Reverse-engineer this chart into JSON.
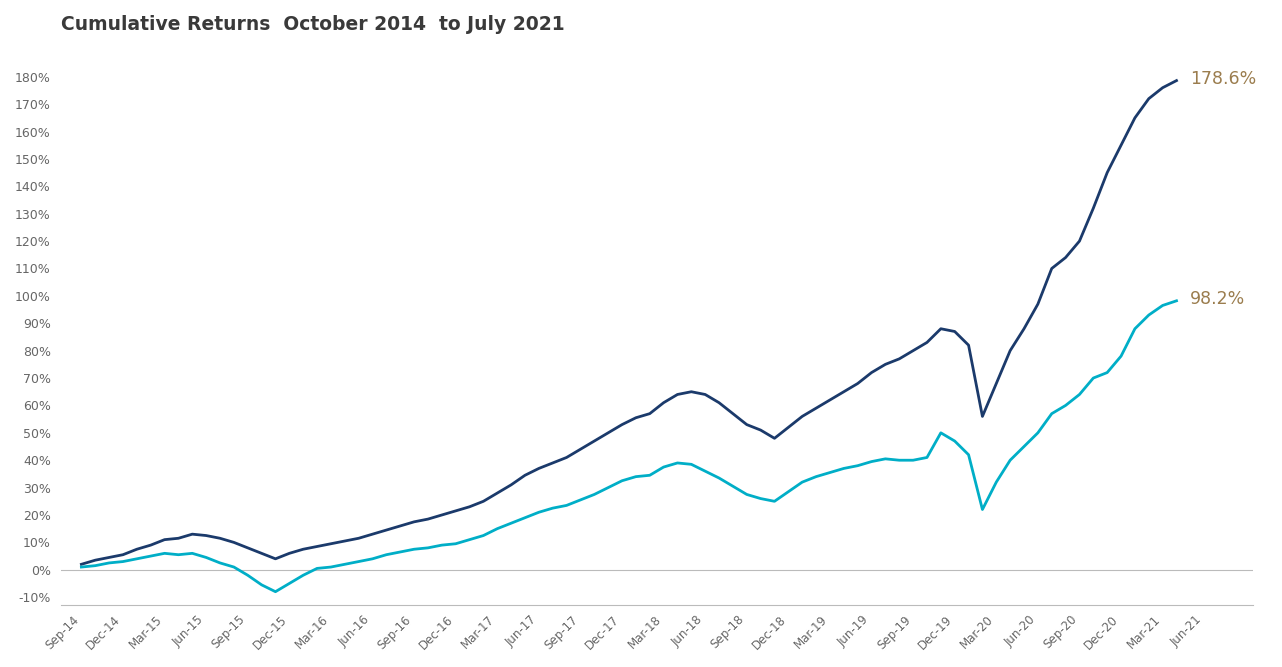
{
  "title": "Cumulative Returns  October 2014  to July 2021",
  "title_color": "#3a3a3a",
  "background_color": "#ffffff",
  "line1_color": "#1b3a6b",
  "line2_color": "#00aec7",
  "label1": "178.6%",
  "label2": "98.2%",
  "label_color": "#9b7d4e",
  "ylim": [
    -0.13,
    1.92
  ],
  "yticks": [
    -0.1,
    0.0,
    0.1,
    0.2,
    0.3,
    0.4,
    0.5,
    0.6,
    0.7,
    0.8,
    0.9,
    1.0,
    1.1,
    1.2,
    1.3,
    1.4,
    1.5,
    1.6,
    1.7,
    1.8
  ],
  "x_tick_labels": [
    "Sep-14",
    "Dec-14",
    "Mar-15",
    "Jun-15",
    "Sep-15",
    "Dec-15",
    "Mar-16",
    "Jun-16",
    "Sep-16",
    "Dec-16",
    "Mar-17",
    "Jun-17",
    "Sep-17",
    "Dec-17",
    "Mar-18",
    "Jun-18",
    "Sep-18",
    "Dec-18",
    "Mar-19",
    "Jun-19",
    "Sep-19",
    "Dec-19",
    "Mar-20",
    "Jun-20",
    "Sep-20",
    "Dec-20",
    "Mar-21",
    "Jun-21"
  ],
  "x_tick_positions": [
    0,
    3,
    6,
    9,
    12,
    15,
    18,
    21,
    24,
    27,
    30,
    33,
    36,
    39,
    42,
    45,
    48,
    51,
    54,
    57,
    60,
    63,
    66,
    69,
    72,
    75,
    78,
    81
  ],
  "line1_values": [
    0.02,
    0.035,
    0.045,
    0.055,
    0.075,
    0.09,
    0.11,
    0.115,
    0.13,
    0.125,
    0.115,
    0.1,
    0.08,
    0.06,
    0.04,
    0.06,
    0.075,
    0.085,
    0.095,
    0.105,
    0.115,
    0.13,
    0.145,
    0.16,
    0.175,
    0.185,
    0.2,
    0.215,
    0.23,
    0.25,
    0.28,
    0.31,
    0.345,
    0.37,
    0.39,
    0.41,
    0.44,
    0.47,
    0.5,
    0.53,
    0.555,
    0.57,
    0.61,
    0.64,
    0.65,
    0.64,
    0.61,
    0.57,
    0.53,
    0.51,
    0.48,
    0.52,
    0.56,
    0.59,
    0.62,
    0.65,
    0.68,
    0.72,
    0.75,
    0.77,
    0.8,
    0.83,
    0.88,
    0.87,
    0.82,
    0.56,
    0.68,
    0.8,
    0.88,
    0.97,
    1.1,
    1.14,
    1.2,
    1.32,
    1.45,
    1.55,
    1.65,
    1.72,
    1.76,
    1.786
  ],
  "line2_values": [
    0.01,
    0.015,
    0.025,
    0.03,
    0.04,
    0.05,
    0.06,
    0.055,
    0.06,
    0.045,
    0.025,
    0.01,
    -0.02,
    -0.055,
    -0.08,
    -0.05,
    -0.02,
    0.005,
    0.01,
    0.02,
    0.03,
    0.04,
    0.055,
    0.065,
    0.075,
    0.08,
    0.09,
    0.095,
    0.11,
    0.125,
    0.15,
    0.17,
    0.19,
    0.21,
    0.225,
    0.235,
    0.255,
    0.275,
    0.3,
    0.325,
    0.34,
    0.345,
    0.375,
    0.39,
    0.385,
    0.36,
    0.335,
    0.305,
    0.275,
    0.26,
    0.25,
    0.285,
    0.32,
    0.34,
    0.355,
    0.37,
    0.38,
    0.395,
    0.405,
    0.4,
    0.4,
    0.41,
    0.5,
    0.47,
    0.42,
    0.22,
    0.32,
    0.4,
    0.45,
    0.5,
    0.57,
    0.6,
    0.64,
    0.7,
    0.72,
    0.78,
    0.88,
    0.93,
    0.965,
    0.982
  ]
}
